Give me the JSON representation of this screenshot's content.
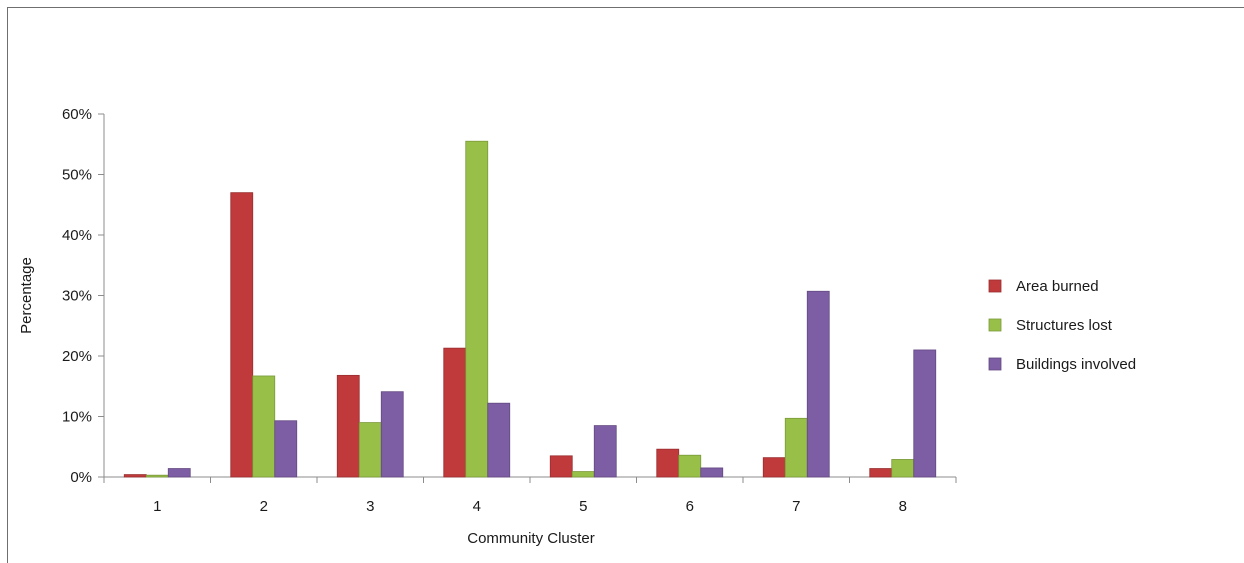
{
  "chart_data": {
    "type": "bar",
    "categories": [
      "1",
      "2",
      "3",
      "4",
      "5",
      "6",
      "7",
      "8"
    ],
    "series": [
      {
        "name": "Area burned",
        "color": "#c0393b",
        "values": [
          0.4,
          47.0,
          16.8,
          21.3,
          3.5,
          4.6,
          3.2,
          1.4
        ]
      },
      {
        "name": "Structures lost",
        "color": "#98bf47",
        "values": [
          0.3,
          16.7,
          9.0,
          55.5,
          0.9,
          3.6,
          9.7,
          2.9
        ]
      },
      {
        "name": "Buildings involved",
        "color": "#7d5da3",
        "values": [
          1.4,
          9.3,
          14.1,
          12.2,
          8.5,
          1.5,
          30.7,
          21.0
        ]
      }
    ],
    "xlabel": "Community Cluster",
    "ylabel": "Percentage",
    "ylim": [
      0,
      60
    ],
    "yticks": [
      "0%",
      "10%",
      "20%",
      "30%",
      "40%",
      "50%",
      "60%"
    ],
    "grid": false,
    "legend_position": "right"
  }
}
